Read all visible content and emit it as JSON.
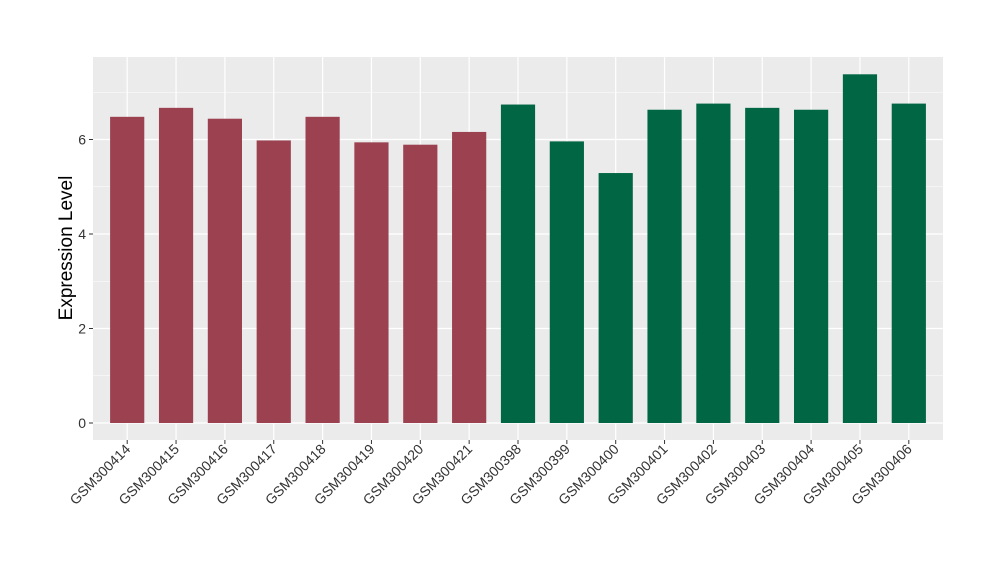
{
  "chart_data": {
    "type": "bar",
    "title": "",
    "xlabel": "",
    "ylabel": "Expression Level",
    "ylim": [
      0,
      7.75
    ],
    "yticks": [
      0,
      2,
      4,
      6
    ],
    "grid": true,
    "legend": "none",
    "categories": [
      "GSM300414",
      "GSM300415",
      "GSM300416",
      "GSM300417",
      "GSM300418",
      "GSM300419",
      "GSM300420",
      "GSM300421",
      "GSM300398",
      "GSM300399",
      "GSM300400",
      "GSM300401",
      "GSM300402",
      "GSM300403",
      "GSM300404",
      "GSM300405",
      "GSM300406"
    ],
    "values": [
      6.48,
      6.67,
      6.44,
      5.98,
      6.48,
      5.94,
      5.89,
      6.16,
      6.74,
      5.96,
      5.29,
      6.63,
      6.76,
      6.67,
      6.63,
      7.38,
      6.76
    ],
    "groups": [
      0,
      0,
      0,
      0,
      0,
      0,
      0,
      0,
      1,
      1,
      1,
      1,
      1,
      1,
      1,
      1,
      1
    ],
    "colors": [
      "#9b4150",
      "#006644"
    ],
    "panel_background": "#ebebeb",
    "grid_color": "#ffffff"
  }
}
